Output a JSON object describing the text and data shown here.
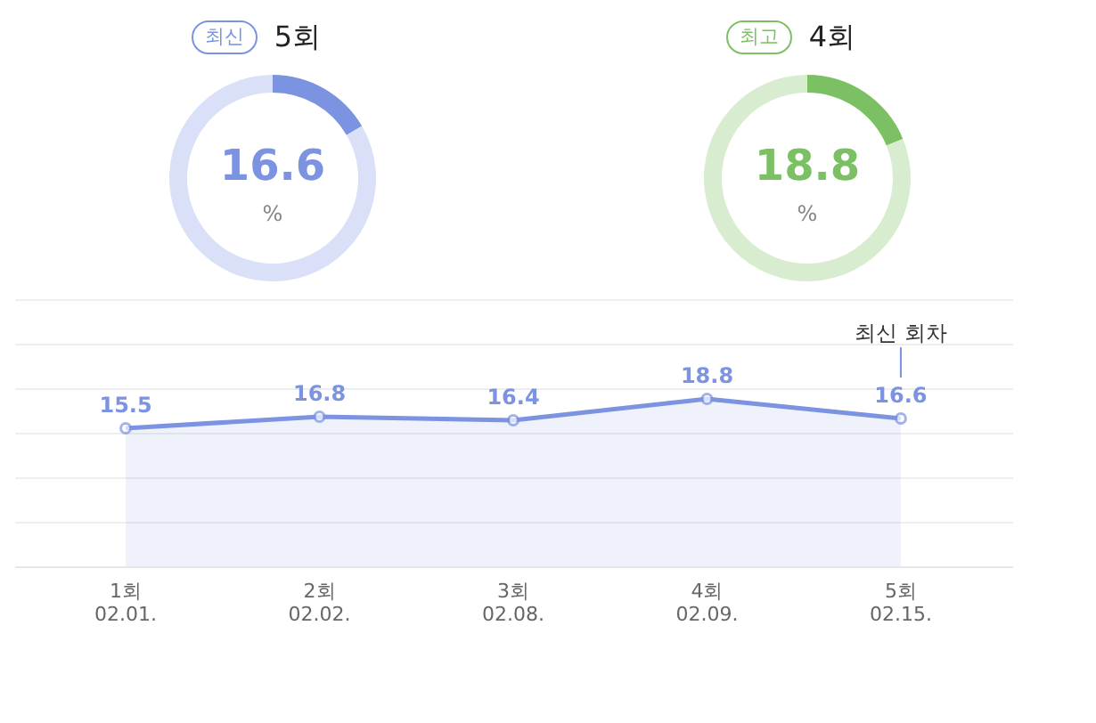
{
  "chart_data": [
    {
      "type": "donut",
      "title": "5회",
      "annotations": [
        "최신",
        "%"
      ],
      "categories": [
        null,
        null
      ],
      "values": [
        16.6,
        83.4
      ],
      "colors": [
        "#7b93e0",
        "#d9e0f7"
      ],
      "value_labels": [
        "16.6",
        null
      ]
    },
    {
      "type": "donut",
      "title": "4회",
      "annotations": [
        "최고",
        "%"
      ],
      "categories": [
        null,
        null
      ],
      "values": [
        18.8,
        81.2
      ],
      "colors": [
        "#7cc064",
        "#d8edd0"
      ],
      "value_labels": [
        "18.8",
        null
      ]
    },
    {
      "type": "area",
      "categories": [
        "1회 02.01.",
        "2회 02.02.",
        "3회 02.08.",
        "4회 02.09.",
        "5회 02.15."
      ],
      "series": [
        {
          "color": "#7b93e0",
          "values": [
            15.5,
            16.8,
            16.4,
            18.8,
            16.6
          ]
        }
      ],
      "ylim": [
        0,
        30
      ],
      "grid": true,
      "marker": "circle",
      "data_labels": true,
      "annotations": [
        "최신 회차"
      ]
    }
  ]
}
